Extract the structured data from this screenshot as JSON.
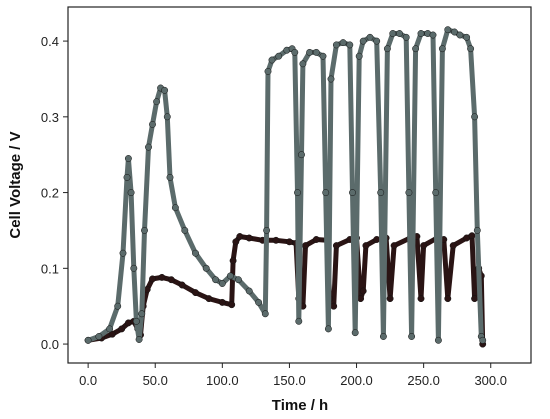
{
  "chart_data": {
    "type": "scatter",
    "xlabel": "Time / h",
    "ylabel": "Cell Voltage / V",
    "xlim": [
      -15,
      330
    ],
    "ylim": [
      -0.025,
      0.445
    ],
    "xticks": [
      0,
      50,
      100,
      150,
      200,
      250,
      300
    ],
    "xtick_labels": [
      "0.0",
      "50.0",
      "100.0",
      "150.0",
      "200.0",
      "250.0",
      "300.0"
    ],
    "yticks": [
      0.0,
      0.1,
      0.2,
      0.3,
      0.4
    ],
    "ytick_labels": [
      "0.0",
      "0.1",
      "0.2",
      "0.3",
      "0.4"
    ],
    "grid": false,
    "legend": "none",
    "series": [
      {
        "color": "#2a1414",
        "points": [
          [
            0,
            0.005
          ],
          [
            10,
            0.008
          ],
          [
            18,
            0.013
          ],
          [
            25,
            0.02
          ],
          [
            30,
            0.028
          ],
          [
            34,
            0.03
          ],
          [
            37,
            0.02
          ],
          [
            39,
            0.012
          ],
          [
            41,
            0.05
          ],
          [
            44,
            0.072
          ],
          [
            48,
            0.086
          ],
          [
            55,
            0.088
          ],
          [
            62,
            0.085
          ],
          [
            70,
            0.078
          ],
          [
            80,
            0.068
          ],
          [
            90,
            0.06
          ],
          [
            100,
            0.055
          ],
          [
            107,
            0.052
          ],
          [
            108,
            0.11
          ],
          [
            110,
            0.135
          ],
          [
            113,
            0.142
          ],
          [
            120,
            0.14
          ],
          [
            130,
            0.137
          ],
          [
            140,
            0.137
          ],
          [
            150,
            0.135
          ],
          [
            155,
            0.133
          ],
          [
            157,
            0.06
          ],
          [
            160,
            0.05
          ],
          [
            162,
            0.13
          ],
          [
            170,
            0.138
          ],
          [
            178,
            0.137
          ],
          [
            180,
            0.06
          ],
          [
            183,
            0.05
          ],
          [
            185,
            0.13
          ],
          [
            195,
            0.138
          ],
          [
            200,
            0.14
          ],
          [
            203,
            0.06
          ],
          [
            205,
            0.07
          ],
          [
            207,
            0.13
          ],
          [
            215,
            0.138
          ],
          [
            222,
            0.14
          ],
          [
            225,
            0.06
          ],
          [
            228,
            0.13
          ],
          [
            240,
            0.14
          ],
          [
            245,
            0.142
          ],
          [
            248,
            0.06
          ],
          [
            250,
            0.13
          ],
          [
            260,
            0.14
          ],
          [
            265,
            0.138
          ],
          [
            268,
            0.06
          ],
          [
            272,
            0.13
          ],
          [
            282,
            0.14
          ],
          [
            286,
            0.143
          ],
          [
            288,
            0.06
          ],
          [
            291,
            0.1
          ],
          [
            293,
            0.09
          ],
          [
            294,
            0.0
          ]
        ]
      },
      {
        "color": "#5b6b6b",
        "points": [
          [
            0,
            0.005
          ],
          [
            8,
            0.01
          ],
          [
            16,
            0.02
          ],
          [
            22,
            0.05
          ],
          [
            26,
            0.12
          ],
          [
            29,
            0.22
          ],
          [
            30,
            0.245
          ],
          [
            32,
            0.2
          ],
          [
            34,
            0.1
          ],
          [
            36,
            0.03
          ],
          [
            38,
            0.006
          ],
          [
            40,
            0.04
          ],
          [
            42,
            0.15
          ],
          [
            45,
            0.26
          ],
          [
            48,
            0.29
          ],
          [
            51,
            0.32
          ],
          [
            54,
            0.338
          ],
          [
            57,
            0.335
          ],
          [
            59,
            0.3
          ],
          [
            61,
            0.22
          ],
          [
            65,
            0.18
          ],
          [
            72,
            0.15
          ],
          [
            80,
            0.12
          ],
          [
            88,
            0.1
          ],
          [
            95,
            0.085
          ],
          [
            100,
            0.08
          ],
          [
            106,
            0.09
          ],
          [
            112,
            0.085
          ],
          [
            120,
            0.07
          ],
          [
            127,
            0.055
          ],
          [
            132,
            0.04
          ],
          [
            133,
            0.15
          ],
          [
            134,
            0.36
          ],
          [
            137,
            0.375
          ],
          [
            142,
            0.38
          ],
          [
            148,
            0.388
          ],
          [
            152,
            0.39
          ],
          [
            154,
            0.385
          ],
          [
            156,
            0.2
          ],
          [
            157,
            0.03
          ],
          [
            159,
            0.25
          ],
          [
            160,
            0.37
          ],
          [
            165,
            0.385
          ],
          [
            170,
            0.385
          ],
          [
            175,
            0.38
          ],
          [
            177,
            0.2
          ],
          [
            179,
            0.02
          ],
          [
            181,
            0.35
          ],
          [
            185,
            0.395
          ],
          [
            190,
            0.398
          ],
          [
            195,
            0.395
          ],
          [
            197,
            0.2
          ],
          [
            199,
            0.015
          ],
          [
            202,
            0.38
          ],
          [
            205,
            0.4
          ],
          [
            210,
            0.405
          ],
          [
            215,
            0.4
          ],
          [
            218,
            0.2
          ],
          [
            220,
            0.01
          ],
          [
            223,
            0.39
          ],
          [
            227,
            0.41
          ],
          [
            232,
            0.41
          ],
          [
            237,
            0.405
          ],
          [
            239,
            0.2
          ],
          [
            241,
            0.01
          ],
          [
            244,
            0.39
          ],
          [
            248,
            0.41
          ],
          [
            253,
            0.41
          ],
          [
            257,
            0.408
          ],
          [
            259,
            0.2
          ],
          [
            261,
            0.005
          ],
          [
            264,
            0.39
          ],
          [
            268,
            0.415
          ],
          [
            273,
            0.412
          ],
          [
            277,
            0.408
          ],
          [
            282,
            0.405
          ],
          [
            285,
            0.39
          ],
          [
            288,
            0.3
          ],
          [
            290,
            0.15
          ],
          [
            293,
            0.01
          ],
          [
            294,
            0.005
          ]
        ]
      }
    ]
  }
}
